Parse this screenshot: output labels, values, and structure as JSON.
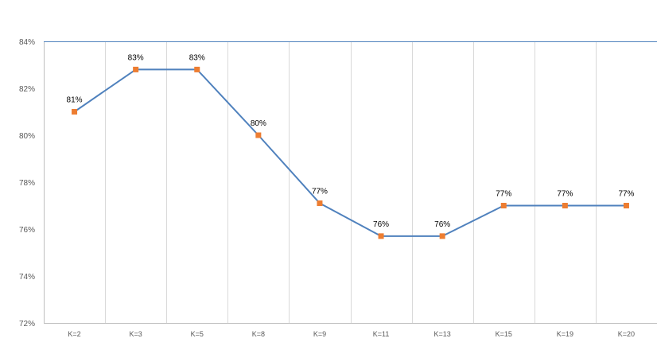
{
  "chart_data": {
    "type": "line",
    "categories": [
      "K=2",
      "K=3",
      "K=5",
      "K=8",
      "K=9",
      "K=11",
      "K=13",
      "K=15",
      "K=19",
      "K=20"
    ],
    "series": [
      {
        "values": [
          0.81,
          0.828,
          0.828,
          0.8,
          0.771,
          0.757,
          0.757,
          0.77,
          0.77,
          0.77
        ],
        "labels": [
          "81%",
          "83%",
          "83%",
          "80%",
          "77%",
          "76%",
          "76%",
          "77%",
          "77%",
          "77%"
        ],
        "line_color": "#4F81BD",
        "marker_color": "#ED7D31"
      }
    ],
    "ylim": [
      0.72,
      0.84
    ],
    "yticks": [
      0.72,
      0.74,
      0.76,
      0.78,
      0.8,
      0.82,
      0.84
    ],
    "ytick_labels": [
      "72%",
      "74%",
      "76%",
      "78%",
      "80%",
      "82%",
      "84%"
    ],
    "grid": true,
    "title": "",
    "xlabel": "",
    "ylabel": "",
    "colors": {
      "gridline": "#D9D9D9",
      "top_line": "#4F81BD",
      "axis": "#BFBFBF"
    }
  }
}
